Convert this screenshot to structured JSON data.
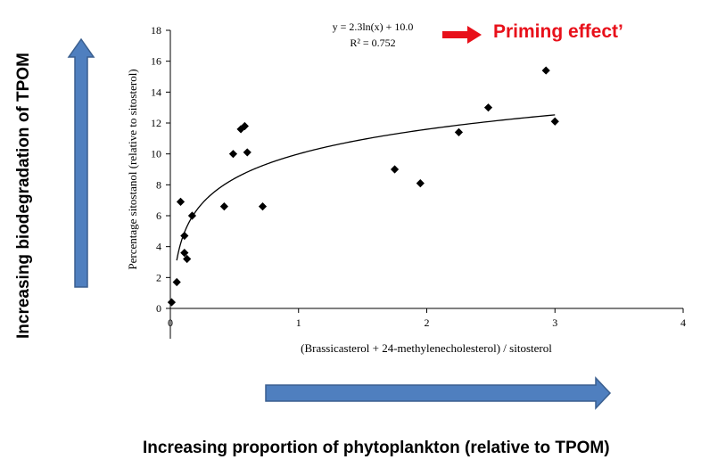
{
  "outer_labels": {
    "vertical_arrow_label": "Increasing biodegradation of TPOM",
    "horizontal_arrow_label": "Increasing proportion of phytoplankton (relative to TPOM)",
    "priming_label": "Priming effect’"
  },
  "colors": {
    "arrow_fill": "#4f7fbf",
    "arrow_stroke": "#3a5f8f",
    "priming_arrow": "#e8101a",
    "marker": "#000000"
  },
  "chart_data": {
    "type": "scatter",
    "xlabel": "(Brassicasterol + 24-methylenecholesterol)  / sitosterol",
    "ylabel": "Percentage sitostanol (relative to sitosterol)",
    "xlim": [
      0,
      4
    ],
    "ylim": [
      0,
      18
    ],
    "x_ticks": [
      "0",
      "1",
      "2",
      "3",
      "4"
    ],
    "y_ticks": [
      "0",
      "2",
      "4",
      "6",
      "8",
      "10",
      "12",
      "14",
      "16",
      "18"
    ],
    "equation": "y = 2.3ln(x) + 10.0",
    "r2": "R² = 0.752",
    "points": [
      {
        "x": 0.01,
        "y": 0.4
      },
      {
        "x": 0.05,
        "y": 1.7
      },
      {
        "x": 0.08,
        "y": 6.9
      },
      {
        "x": 0.11,
        "y": 4.7
      },
      {
        "x": 0.11,
        "y": 3.6
      },
      {
        "x": 0.13,
        "y": 3.2
      },
      {
        "x": 0.17,
        "y": 6.0
      },
      {
        "x": 0.42,
        "y": 6.6
      },
      {
        "x": 0.49,
        "y": 10.0
      },
      {
        "x": 0.55,
        "y": 11.6
      },
      {
        "x": 0.58,
        "y": 11.8
      },
      {
        "x": 0.6,
        "y": 10.1
      },
      {
        "x": 0.72,
        "y": 6.6
      },
      {
        "x": 1.75,
        "y": 9.0
      },
      {
        "x": 1.95,
        "y": 8.1
      },
      {
        "x": 2.25,
        "y": 11.4
      },
      {
        "x": 2.48,
        "y": 13.0
      },
      {
        "x": 2.93,
        "y": 15.4
      },
      {
        "x": 3.0,
        "y": 12.1
      }
    ],
    "trendline": {
      "type": "log",
      "a": 2.3,
      "b": 10.0,
      "x_from": 0.05,
      "x_to": 3.0
    },
    "grid": false,
    "legend": "none"
  }
}
